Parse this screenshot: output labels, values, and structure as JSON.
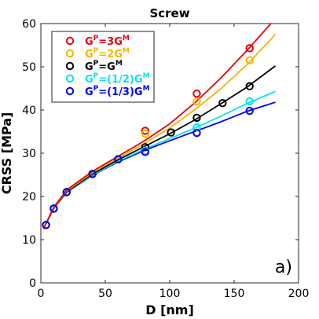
{
  "chart_data": {
    "type": "line",
    "title": "Screw",
    "xlabel": "D [nm]",
    "ylabel": "CRSS [MPa]",
    "xlim": [
      0,
      200
    ],
    "ylim": [
      0,
      60
    ],
    "xticks": [
      0,
      50,
      100,
      150,
      200
    ],
    "yticks": [
      0,
      10,
      20,
      30,
      40,
      50,
      60
    ],
    "grid": false,
    "legend_position": "top-left",
    "panel_label": "a)",
    "series": [
      {
        "name": "G^P=3G^M",
        "label_parts": [
          "G",
          "P",
          "=3G",
          "M",
          ""
        ],
        "color": "#e8000b",
        "points": [
          [
            4,
            13.4
          ],
          [
            10,
            17.2
          ],
          [
            20,
            21.0
          ],
          [
            40,
            25.2
          ],
          [
            60,
            28.6
          ],
          [
            81,
            35.2
          ],
          [
            121,
            43.8
          ],
          [
            162,
            54.3
          ]
        ],
        "curve_x": [
          2,
          10,
          20,
          40,
          60,
          80,
          100,
          120,
          140,
          160,
          180
        ],
        "curve_y": [
          12.5,
          17.5,
          21.5,
          25.8,
          29.3,
          32.8,
          36.8,
          41.8,
          47.5,
          53.8,
          60.5
        ]
      },
      {
        "name": "G^P=2G^M",
        "label_parts": [
          "G",
          "P",
          "=2G",
          "M",
          ""
        ],
        "color": "#f5b400",
        "points": [
          [
            4,
            13.4
          ],
          [
            10,
            17.2
          ],
          [
            20,
            21.0
          ],
          [
            40,
            25.2
          ],
          [
            60,
            28.6
          ],
          [
            81,
            34.5
          ],
          [
            121,
            42.0
          ],
          [
            162,
            51.5
          ]
        ],
        "curve_x": [
          2,
          10,
          20,
          40,
          60,
          80,
          100,
          120,
          140,
          160,
          182
        ],
        "curve_y": [
          12.5,
          17.4,
          21.3,
          25.5,
          28.9,
          32.2,
          35.8,
          40.2,
          45.0,
          50.5,
          57.5
        ]
      },
      {
        "name": "G^P=G^M",
        "label_parts": [
          "G",
          "P",
          "=G",
          "M",
          ""
        ],
        "color": "#000000",
        "points": [
          [
            4,
            13.4
          ],
          [
            10,
            17.2
          ],
          [
            20,
            21.0
          ],
          [
            40,
            25.2
          ],
          [
            60,
            28.6
          ],
          [
            81,
            31.4
          ],
          [
            101,
            34.8
          ],
          [
            121,
            38.2
          ],
          [
            141,
            41.6
          ],
          [
            162,
            45.5
          ]
        ],
        "curve_x": [
          2,
          10,
          20,
          40,
          60,
          80,
          100,
          120,
          140,
          160,
          182
        ],
        "curve_y": [
          12.5,
          17.3,
          21.1,
          25.2,
          28.5,
          31.5,
          34.5,
          37.8,
          41.5,
          45.3,
          50.2
        ]
      },
      {
        "name": "G^P=(1/2)G^M",
        "label_parts": [
          "G",
          "P",
          "=(1/2)G",
          "M",
          ""
        ],
        "color": "#00e5ee",
        "points": [
          [
            4,
            13.4
          ],
          [
            10,
            17.2
          ],
          [
            20,
            21.0
          ],
          [
            40,
            25.2
          ],
          [
            60,
            28.6
          ],
          [
            81,
            30.6
          ],
          [
            121,
            36.0
          ],
          [
            162,
            42.0
          ]
        ],
        "curve_x": [
          2,
          10,
          20,
          40,
          60,
          80,
          100,
          120,
          140,
          160,
          182
        ],
        "curve_y": [
          12.5,
          17.2,
          21.0,
          25.0,
          28.2,
          30.9,
          33.4,
          35.9,
          38.6,
          41.5,
          44.3
        ]
      },
      {
        "name": "G^P=(1/3)G^M",
        "label_parts": [
          "G",
          "P",
          "=(1/3)G",
          "M",
          ""
        ],
        "color": "#0000ee",
        "points": [
          [
            4,
            13.4
          ],
          [
            10,
            17.2
          ],
          [
            20,
            21.0
          ],
          [
            40,
            25.2
          ],
          [
            60,
            28.6
          ],
          [
            81,
            30.3
          ],
          [
            121,
            34.7
          ],
          [
            162,
            39.8
          ]
        ],
        "curve_x": [
          2,
          10,
          20,
          40,
          60,
          80,
          100,
          120,
          140,
          160,
          182
        ],
        "curve_y": [
          12.5,
          17.2,
          20.9,
          24.9,
          28.0,
          30.6,
          32.9,
          35.1,
          37.3,
          39.7,
          41.8
        ]
      }
    ]
  }
}
